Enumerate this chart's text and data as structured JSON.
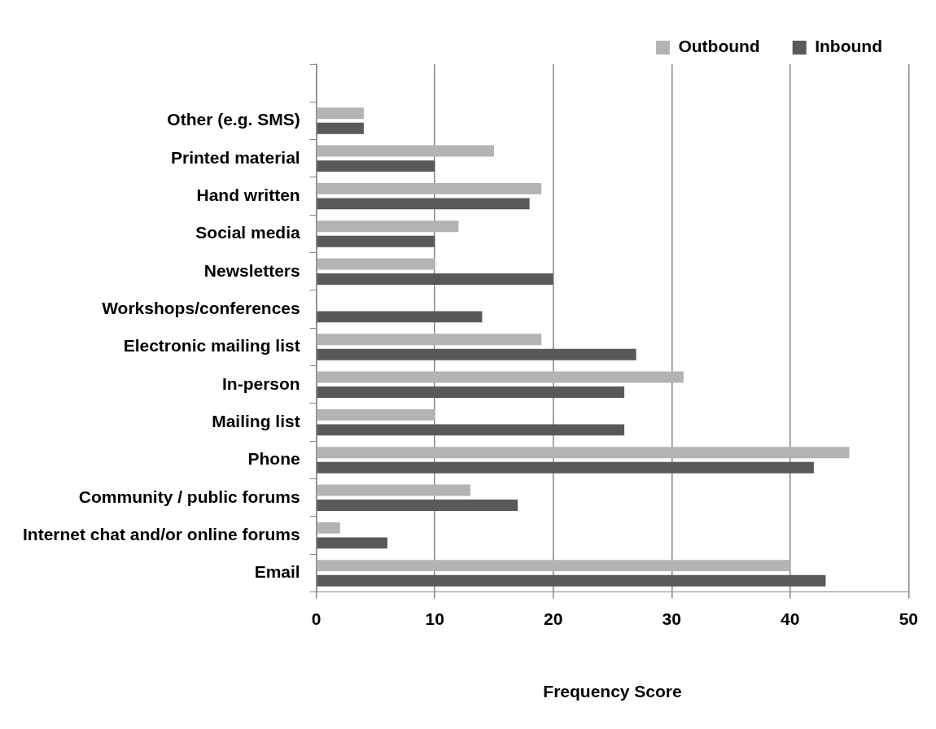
{
  "chart_data": {
    "type": "bar",
    "orientation": "horizontal",
    "xlabel": "Frequency Score",
    "categories": [
      null,
      "Other (e.g. SMS)",
      "Printed material",
      "Hand written",
      "Social media",
      "Newsletters",
      "Workshops/conferences",
      "Electronic mailing list",
      "In-person",
      "Mailing list",
      "Phone",
      "Community / public forums",
      "Internet chat and/or online forums",
      "Email"
    ],
    "series": [
      {
        "name": "Outbound",
        "color": "#b3b3b3",
        "values": [
          null,
          4,
          15,
          19,
          12,
          10,
          0,
          19,
          31,
          10,
          45,
          13,
          2,
          40
        ]
      },
      {
        "name": "Inbound",
        "color": "#595959",
        "values": [
          null,
          4,
          10,
          18,
          10,
          20,
          14,
          27,
          26,
          26,
          42,
          17,
          6,
          43
        ]
      }
    ],
    "xlim": [
      0,
      50
    ],
    "xticks": [
      0,
      10,
      20,
      30,
      40,
      50
    ],
    "grid": "x",
    "legend": "top right"
  }
}
